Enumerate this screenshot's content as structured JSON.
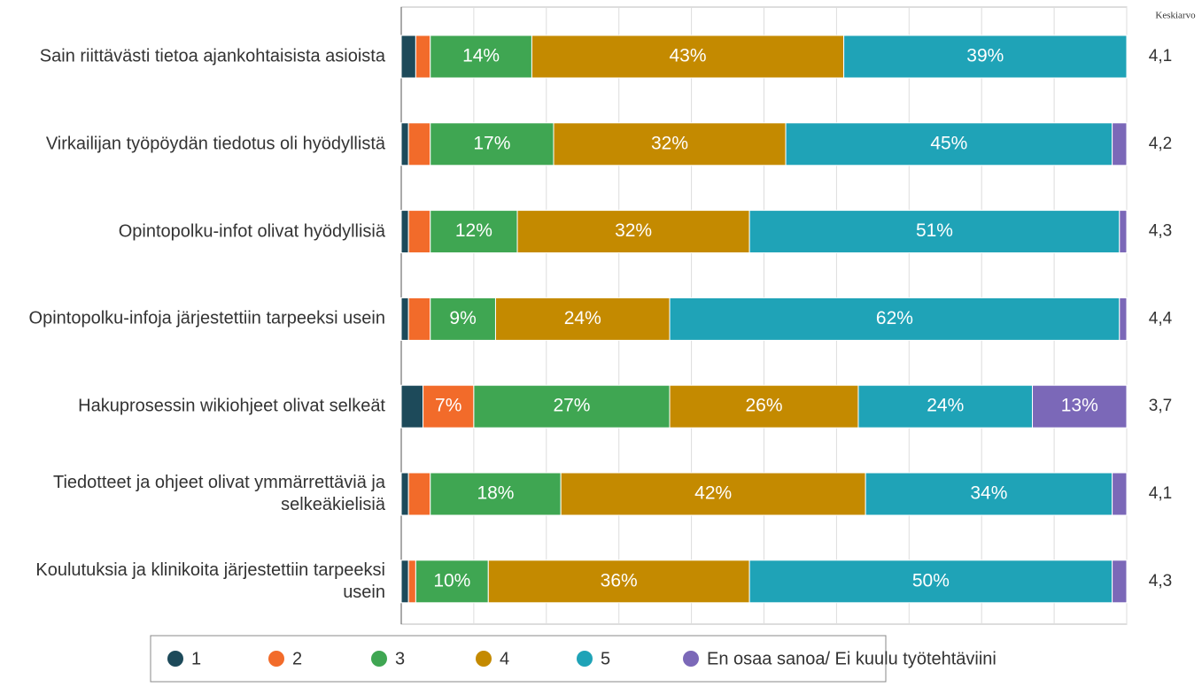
{
  "chart_data": {
    "type": "stacked_barh",
    "categories": [
      "Sain riittävästi tietoa ajankohtaisista asioista",
      "Virkailijan työpöydän tiedotus oli hyödyllistä",
      "Opintopolku-infot olivat hyödyllisiä",
      "Opintopolku-infoja järjestettiin tarpeeksi usein",
      "Hakuprosessin wikiohjeet olivat selkeät",
      "Tiedotteet ja ohjeet olivat ymmärrettäviä ja selkeäkielisiä",
      "Koulutuksia ja klinikoita järjestettiin tarpeeksi usein"
    ],
    "series": [
      {
        "name": "1",
        "color": "#1d4a5a",
        "values": [
          2,
          1,
          1,
          1,
          3,
          1,
          1
        ],
        "value_labels": [
          null,
          null,
          null,
          null,
          null,
          null,
          null
        ]
      },
      {
        "name": "2",
        "color": "#f26b2a",
        "values": [
          2,
          3,
          3,
          3,
          7,
          3,
          1
        ],
        "value_labels": [
          null,
          null,
          null,
          null,
          "7%",
          null,
          null
        ]
      },
      {
        "name": "3",
        "color": "#3fa652",
        "values": [
          14,
          17,
          12,
          9,
          27,
          18,
          10
        ],
        "value_labels": [
          "14%",
          "17%",
          "12%",
          "9%",
          "27%",
          "18%",
          "10%"
        ]
      },
      {
        "name": "4",
        "color": "#c48a00",
        "values": [
          43,
          32,
          32,
          24,
          26,
          42,
          36
        ],
        "value_labels": [
          "43%",
          "32%",
          "32%",
          "24%",
          "26%",
          "42%",
          "36%"
        ]
      },
      {
        "name": "5",
        "color": "#1fa3b7",
        "values": [
          39,
          45,
          51,
          62,
          24,
          34,
          50
        ],
        "value_labels": [
          "39%",
          "45%",
          "51%",
          "62%",
          "24%",
          "34%",
          "50%"
        ]
      },
      {
        "name": "En osaa sanoa/ Ei kuulu työtehtäviini",
        "color": "#7b68b8",
        "values": [
          0,
          2,
          1,
          1,
          13,
          2,
          2
        ],
        "value_labels": [
          null,
          null,
          null,
          null,
          "13%",
          null,
          null
        ]
      }
    ],
    "mean_title": "Keskiarvo",
    "means": [
      4.1,
      4.2,
      4.3,
      4.4,
      3.7,
      4.1,
      4.3
    ],
    "mean_labels": [
      "4,1",
      "4,2",
      "4,3",
      "4,4",
      "3,7",
      "4,1",
      "4,3"
    ],
    "xlim": [
      0,
      100
    ],
    "xticks": [
      0,
      10,
      20,
      30,
      40,
      50,
      60,
      70,
      80,
      90,
      100
    ],
    "grid": true,
    "legend": "bottom"
  }
}
